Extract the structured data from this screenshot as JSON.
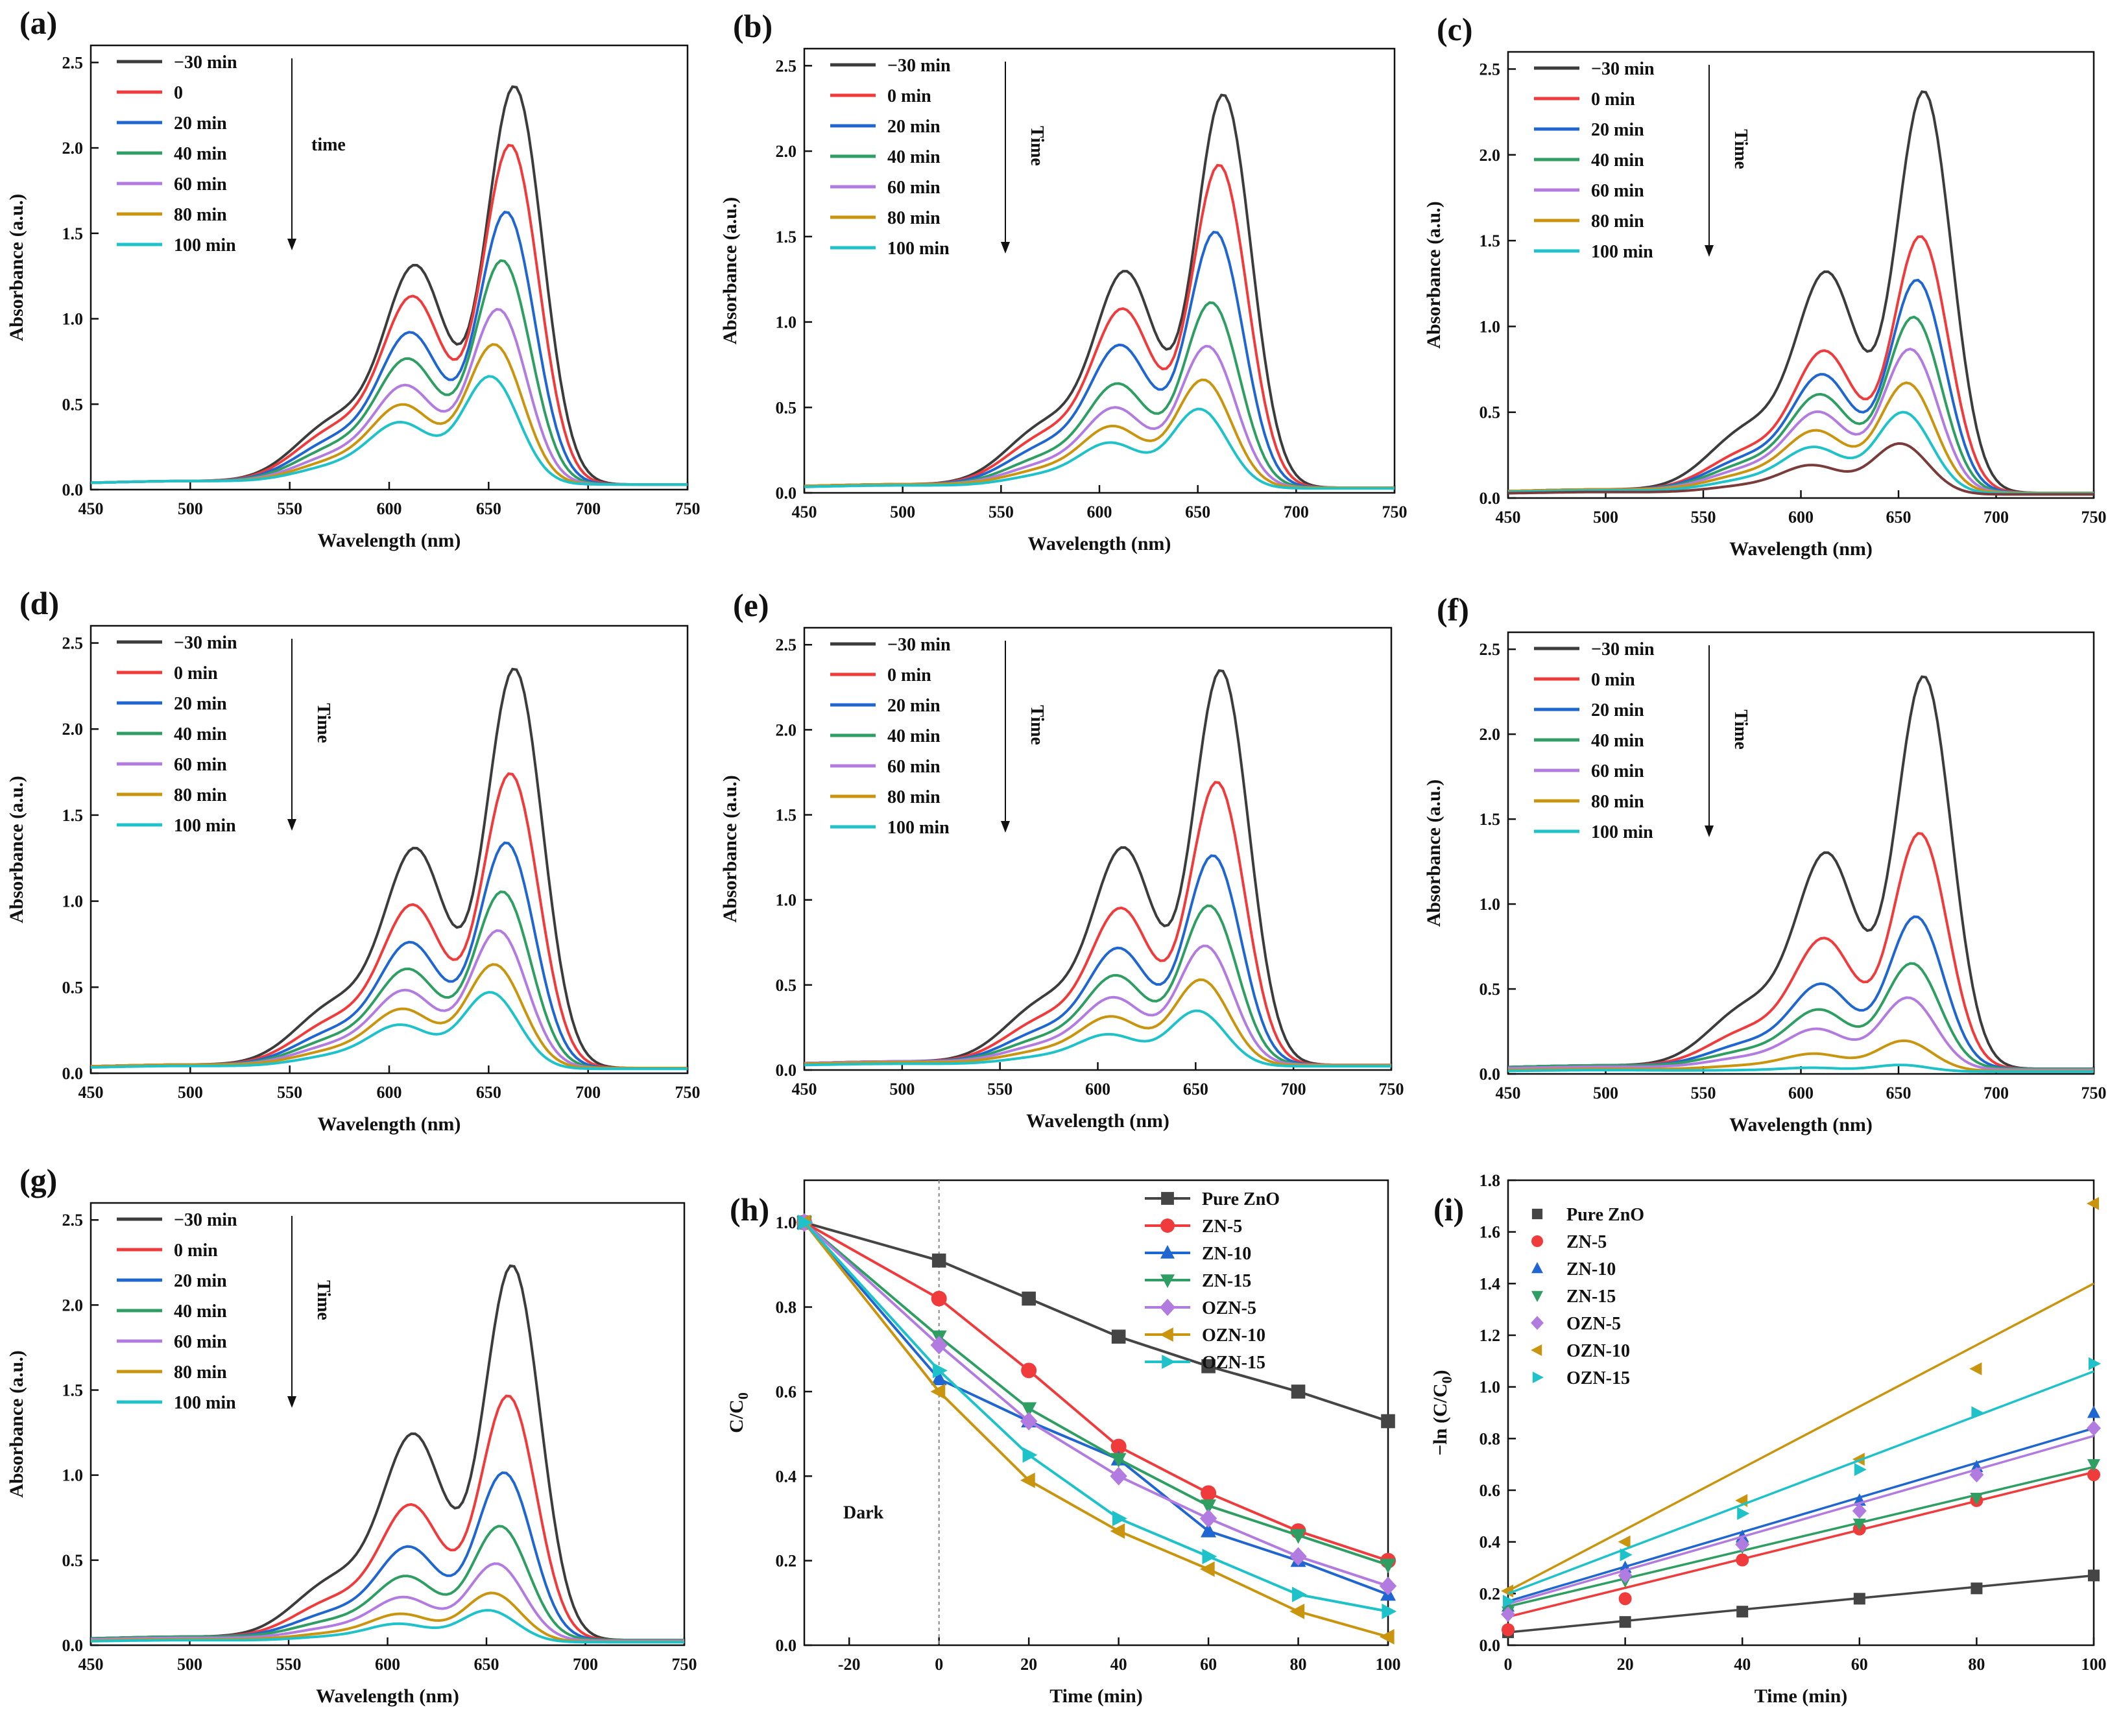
{
  "figure": {
    "chart_data": [
      {
        "id": "a",
        "panel_label": "(a)",
        "type": "line",
        "xlabel": "Wavelength (nm)",
        "ylabel": "Absorbance (a.u.)",
        "xlim": [
          450,
          750
        ],
        "ylim": [
          0,
          2.6
        ],
        "xticks": [
          450,
          500,
          550,
          600,
          650,
          700,
          750
        ],
        "yticks": [
          0,
          0.5,
          1.0,
          1.5,
          2.0,
          2.5
        ],
        "time_label": "time",
        "legend_position": "top-left",
        "series": [
          {
            "name": "−30 min",
            "peak": 2.37
          },
          {
            "name": "0",
            "peak": 2.02
          },
          {
            "name": "20 min",
            "peak": 1.62
          },
          {
            "name": "40 min",
            "peak": 1.33
          },
          {
            "name": "60 min",
            "peak": 1.04
          },
          {
            "name": "80 min",
            "peak": 0.83
          },
          {
            "name": "100 min",
            "peak": 0.64
          }
        ]
      },
      {
        "id": "b",
        "panel_label": "(b)",
        "type": "line",
        "xlabel": "Wavelength (nm)",
        "ylabel": "Absorbance (a.u.)",
        "xlim": [
          450,
          750
        ],
        "ylim": [
          0,
          2.6
        ],
        "xticks": [
          450,
          500,
          550,
          600,
          650,
          700,
          750
        ],
        "yticks": [
          0,
          0.5,
          1.0,
          1.5,
          2.0,
          2.5
        ],
        "time_label": "Time",
        "legend_position": "top-left",
        "series": [
          {
            "name": "−30 min",
            "peak": 2.34
          },
          {
            "name": "0 min",
            "peak": 1.92
          },
          {
            "name": "20 min",
            "peak": 1.52
          },
          {
            "name": "40 min",
            "peak": 1.1
          },
          {
            "name": "60 min",
            "peak": 0.84
          },
          {
            "name": "80 min",
            "peak": 0.64
          },
          {
            "name": "100 min",
            "peak": 0.47
          }
        ]
      },
      {
        "id": "c",
        "panel_label": "(c)",
        "type": "line",
        "xlabel": "Wavelength (nm)",
        "ylabel": "Absorbance (a.u.)",
        "xlim": [
          450,
          750
        ],
        "ylim": [
          0,
          2.6
        ],
        "xticks": [
          450,
          500,
          550,
          600,
          650,
          700,
          750
        ],
        "yticks": [
          0,
          0.5,
          1.0,
          1.5,
          2.0,
          2.5
        ],
        "time_label": "Time",
        "legend_position": "top-left",
        "series": [
          {
            "name": "−30 min",
            "peak": 2.38
          },
          {
            "name": "0 min",
            "peak": 1.52
          },
          {
            "name": "20 min",
            "peak": 1.26
          },
          {
            "name": "40 min",
            "peak": 1.04
          },
          {
            "name": "60 min",
            "peak": 0.85
          },
          {
            "name": "80 min",
            "peak": 0.65
          },
          {
            "name": "100 min",
            "peak": 0.48
          },
          {
            "name": "",
            "peak": 0.3
          }
        ]
      },
      {
        "id": "d",
        "panel_label": "(d)",
        "type": "line",
        "xlabel": "Wavelength (nm)",
        "ylabel": "Absorbance (a.u.)",
        "xlim": [
          450,
          750
        ],
        "ylim": [
          0,
          2.6
        ],
        "xticks": [
          450,
          500,
          550,
          600,
          650,
          700,
          750
        ],
        "yticks": [
          0,
          0.5,
          1.0,
          1.5,
          2.0,
          2.5
        ],
        "time_label": "Time",
        "legend_position": "top-left",
        "series": [
          {
            "name": "−30 min",
            "peak": 2.36
          },
          {
            "name": "0 min",
            "peak": 1.74
          },
          {
            "name": "20 min",
            "peak": 1.33
          },
          {
            "name": "40 min",
            "peak": 1.04
          },
          {
            "name": "60 min",
            "peak": 0.81
          },
          {
            "name": "80 min",
            "peak": 0.61
          },
          {
            "name": "100 min",
            "peak": 0.45
          }
        ]
      },
      {
        "id": "e",
        "panel_label": "(e)",
        "type": "line",
        "xlabel": "Wavelength (nm)",
        "ylabel": "Absorbance (a.u.)",
        "xlim": [
          450,
          750
        ],
        "ylim": [
          0,
          2.6
        ],
        "xticks": [
          450,
          500,
          550,
          600,
          650,
          700,
          750
        ],
        "yticks": [
          0,
          0.5,
          1.0,
          1.5,
          2.0,
          2.5
        ],
        "time_label": "Time",
        "legend_position": "top-left",
        "series": [
          {
            "name": "−30 min",
            "peak": 2.36
          },
          {
            "name": "0 min",
            "peak": 1.69
          },
          {
            "name": "20 min",
            "peak": 1.25
          },
          {
            "name": "40 min",
            "peak": 0.95
          },
          {
            "name": "60 min",
            "peak": 0.71
          },
          {
            "name": "80 min",
            "peak": 0.51
          },
          {
            "name": "100 min",
            "peak": 0.33
          }
        ]
      },
      {
        "id": "f",
        "panel_label": "(f)",
        "type": "line",
        "xlabel": "Wavelength (nm)",
        "ylabel": "Absorbance (a.u.)",
        "xlim": [
          450,
          750
        ],
        "ylim": [
          0,
          2.6
        ],
        "xticks": [
          450,
          500,
          550,
          600,
          650,
          700,
          750
        ],
        "yticks": [
          0,
          0.5,
          1.0,
          1.5,
          2.0,
          2.5
        ],
        "time_label": "Time",
        "legend_position": "top-left",
        "series": [
          {
            "name": "−30 min",
            "peak": 2.35
          },
          {
            "name": "0 min",
            "peak": 1.41
          },
          {
            "name": "20 min",
            "peak": 0.91
          },
          {
            "name": "40 min",
            "peak": 0.63
          },
          {
            "name": "60 min",
            "peak": 0.43
          },
          {
            "name": "80 min",
            "peak": 0.18
          },
          {
            "name": "100 min",
            "peak": 0.04
          }
        ]
      },
      {
        "id": "g",
        "panel_label": "(g)",
        "type": "line",
        "xlabel": "Wavelength (nm)",
        "ylabel": "Absorbance (a.u.)",
        "xlim": [
          450,
          750
        ],
        "ylim": [
          0,
          2.6
        ],
        "xticks": [
          450,
          500,
          550,
          600,
          650,
          700,
          750
        ],
        "yticks": [
          0,
          0.5,
          1.0,
          1.5,
          2.0,
          2.5
        ],
        "time_label": "Time",
        "legend_position": "top-left",
        "series": [
          {
            "name": "−30 min",
            "peak": 2.24
          },
          {
            "name": "0 min",
            "peak": 1.46
          },
          {
            "name": "20 min",
            "peak": 1.0
          },
          {
            "name": "40 min",
            "peak": 0.68
          },
          {
            "name": "60 min",
            "peak": 0.46
          },
          {
            "name": "80 min",
            "peak": 0.29
          },
          {
            "name": "100 min",
            "peak": 0.19
          }
        ]
      },
      {
        "id": "h",
        "panel_label": "(h)",
        "type": "line",
        "xlabel": "Time (min)",
        "ylabel": "C/C",
        "ylabel_subscript": "0",
        "xlim": [
          -30,
          100
        ],
        "ylim": [
          0,
          1.1
        ],
        "xticks": [
          -20,
          0,
          20,
          40,
          60,
          80,
          100
        ],
        "yticks": [
          0.0,
          0.2,
          0.4,
          0.6,
          0.8,
          1.0
        ],
        "annotation": "Dark",
        "legend_position": "top-right",
        "x": [
          -30,
          0,
          20,
          40,
          60,
          80,
          100
        ],
        "series": [
          {
            "name": "Pure ZnO",
            "marker": "square",
            "values": [
              1.0,
              0.91,
              0.82,
              0.73,
              0.66,
              0.6,
              0.53
            ]
          },
          {
            "name": "ZN-5",
            "marker": "circle",
            "values": [
              1.0,
              0.82,
              0.65,
              0.47,
              0.36,
              0.27,
              0.2
            ]
          },
          {
            "name": "ZN-10",
            "marker": "triangle-up",
            "values": [
              1.0,
              0.63,
              0.53,
              0.44,
              0.27,
              0.2,
              0.12
            ]
          },
          {
            "name": "ZN-15",
            "marker": "triangle-down",
            "values": [
              1.0,
              0.73,
              0.56,
              0.44,
              0.33,
              0.26,
              0.19
            ]
          },
          {
            "name": "OZN-5",
            "marker": "diamond",
            "values": [
              1.0,
              0.71,
              0.53,
              0.4,
              0.3,
              0.21,
              0.14
            ]
          },
          {
            "name": "OZN-10",
            "marker": "triangle-left",
            "values": [
              1.0,
              0.6,
              0.39,
              0.27,
              0.18,
              0.08,
              0.02
            ]
          },
          {
            "name": "OZN-15",
            "marker": "triangle-right",
            "values": [
              1.0,
              0.65,
              0.45,
              0.3,
              0.21,
              0.12,
              0.08
            ]
          }
        ]
      },
      {
        "id": "i",
        "panel_label": "(i)",
        "type": "scatter",
        "xlabel": "Time (min)",
        "ylabel": "−ln (C/C",
        "ylabel_subscript": "0",
        "ylabel_suffix": ")",
        "xlim": [
          0,
          100
        ],
        "ylim": [
          0,
          1.8
        ],
        "xticks": [
          0,
          20,
          40,
          60,
          80,
          100
        ],
        "yticks": [
          0.0,
          0.2,
          0.4,
          0.6,
          0.8,
          1.0,
          1.2,
          1.4,
          1.6,
          1.8
        ],
        "legend_position": "top-left",
        "x": [
          0,
          20,
          40,
          60,
          80,
          100
        ],
        "series": [
          {
            "name": "Pure ZnO",
            "marker": "square",
            "values": [
              0.05,
              0.09,
              0.13,
              0.18,
              0.22,
              0.27
            ],
            "fit": [
              0.05,
              0.27
            ]
          },
          {
            "name": "ZN-5",
            "marker": "circle",
            "values": [
              0.06,
              0.18,
              0.33,
              0.45,
              0.56,
              0.66
            ],
            "fit": [
              0.11,
              0.67
            ]
          },
          {
            "name": "ZN-10",
            "marker": "triangle-up",
            "values": [
              0.15,
              0.3,
              0.42,
              0.56,
              0.69,
              0.9
            ],
            "fit": [
              0.17,
              0.84
            ]
          },
          {
            "name": "ZN-15",
            "marker": "triangle-down",
            "values": [
              0.13,
              0.25,
              0.38,
              0.47,
              0.57,
              0.7
            ],
            "fit": [
              0.15,
              0.69
            ]
          },
          {
            "name": "OZN-5",
            "marker": "diamond",
            "values": [
              0.12,
              0.27,
              0.39,
              0.52,
              0.66,
              0.84
            ],
            "fit": [
              0.16,
              0.81
            ]
          },
          {
            "name": "OZN-10",
            "marker": "triangle-left",
            "values": [
              0.21,
              0.4,
              0.56,
              0.72,
              1.07,
              1.71
            ],
            "fit": [
              0.21,
              1.4
            ]
          },
          {
            "name": "OZN-15",
            "marker": "triangle-right",
            "values": [
              0.17,
              0.35,
              0.51,
              0.68,
              0.9,
              1.09
            ],
            "fit": [
              0.2,
              1.06
            ]
          }
        ]
      }
    ]
  },
  "colors": {
    "spectra": [
      "#3c3c3c",
      "#ef3b3b",
      "#1f66d1",
      "#2f9e62",
      "#b27be0",
      "#c9950f",
      "#1ec2c8",
      "#7a3b3b"
    ],
    "kinetics": [
      "#454545",
      "#ef3b3b",
      "#1f66d1",
      "#2f9e62",
      "#b27be0",
      "#c9950f",
      "#1ec2c8"
    ],
    "axis": "#111111",
    "dark_line": "#888888"
  }
}
